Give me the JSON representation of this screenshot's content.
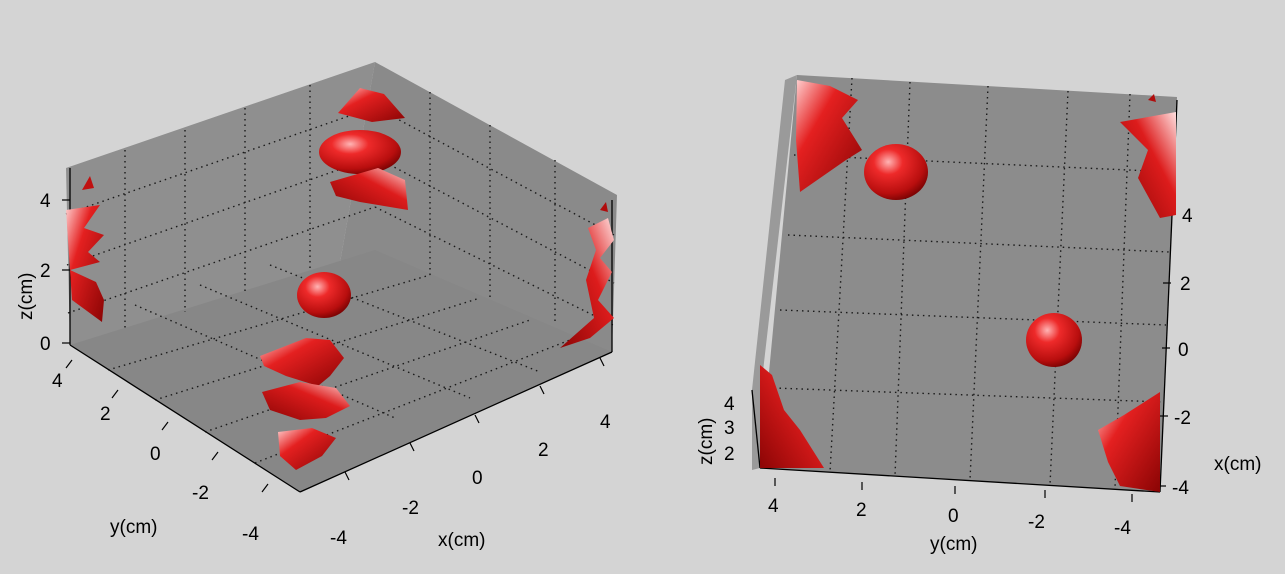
{
  "chart_data": [
    {
      "type": "3d-isosurface",
      "view": "oblique",
      "xlabel": "x(cm)",
      "ylabel": "y(cm)",
      "zlabel": "z(cm)",
      "x_ticks": [
        "-4",
        "-2",
        "0",
        "2",
        "4"
      ],
      "y_ticks": [
        "-4",
        "-2",
        "0",
        "2",
        "4"
      ],
      "z_ticks": [
        "0",
        "2",
        "4"
      ],
      "xlim": [
        -5,
        5
      ],
      "ylim": [
        -5,
        5
      ],
      "zlim": [
        0,
        5
      ],
      "grid": true,
      "background_color": "#8c8c8c",
      "surface_color": "#d81818"
    },
    {
      "type": "3d-isosurface",
      "view": "top-down",
      "xlabel": "x(cm)",
      "ylabel": "y(cm)",
      "zlabel": "z(cm)",
      "x_ticks": [
        "4",
        "2",
        "0",
        "-2",
        "-4"
      ],
      "y_ticks": [
        "4",
        "2",
        "0",
        "-2",
        "-4"
      ],
      "z_ticks": [
        "2",
        "3",
        "4"
      ],
      "xlim": [
        -5,
        5
      ],
      "ylim": [
        -5,
        5
      ],
      "zlim": [
        1.5,
        5
      ],
      "grid": true,
      "background_color": "#8c8c8c",
      "surface_color": "#d81818"
    }
  ]
}
